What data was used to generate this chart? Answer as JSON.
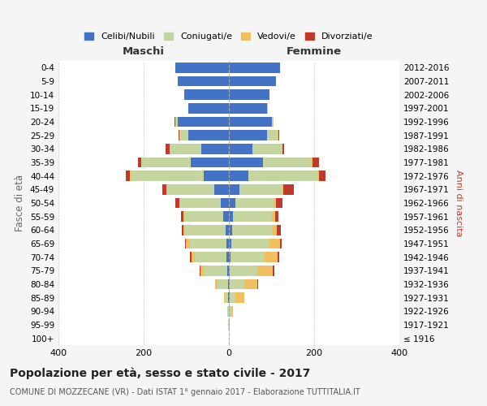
{
  "age_groups": [
    "100+",
    "95-99",
    "90-94",
    "85-89",
    "80-84",
    "75-79",
    "70-74",
    "65-69",
    "60-64",
    "55-59",
    "50-54",
    "45-49",
    "40-44",
    "35-39",
    "30-34",
    "25-29",
    "20-24",
    "15-19",
    "10-14",
    "5-9",
    "0-4"
  ],
  "birth_years": [
    "≤ 1916",
    "1917-1921",
    "1922-1926",
    "1927-1931",
    "1932-1936",
    "1937-1941",
    "1942-1946",
    "1947-1951",
    "1952-1956",
    "1957-1961",
    "1962-1966",
    "1967-1971",
    "1972-1976",
    "1977-1981",
    "1982-1986",
    "1987-1991",
    "1992-1996",
    "1997-2001",
    "2002-2006",
    "2007-2011",
    "2012-2016"
  ],
  "maschi": {
    "celibi": [
      0,
      0,
      0,
      1,
      2,
      4,
      5,
      6,
      8,
      14,
      20,
      35,
      60,
      90,
      65,
      95,
      120,
      95,
      105,
      120,
      125
    ],
    "coniugati": [
      0,
      1,
      3,
      8,
      25,
      55,
      75,
      85,
      95,
      90,
      95,
      110,
      170,
      115,
      75,
      20,
      5,
      1,
      0,
      0,
      0
    ],
    "vedovi": [
      0,
      0,
      1,
      2,
      5,
      8,
      8,
      10,
      3,
      2,
      2,
      1,
      2,
      1,
      0,
      1,
      1,
      0,
      0,
      0,
      0
    ],
    "divorziati": [
      0,
      0,
      0,
      0,
      0,
      2,
      3,
      2,
      5,
      6,
      8,
      10,
      10,
      8,
      8,
      2,
      1,
      0,
      0,
      0,
      0
    ]
  },
  "femmine": {
    "nubili": [
      0,
      0,
      0,
      1,
      2,
      2,
      4,
      5,
      8,
      10,
      15,
      25,
      45,
      80,
      55,
      90,
      100,
      90,
      95,
      110,
      120
    ],
    "coniugate": [
      0,
      1,
      5,
      15,
      35,
      65,
      80,
      90,
      95,
      90,
      90,
      100,
      165,
      115,
      70,
      25,
      5,
      2,
      0,
      0,
      0
    ],
    "vedove": [
      0,
      1,
      5,
      20,
      30,
      35,
      30,
      25,
      10,
      8,
      5,
      2,
      2,
      2,
      0,
      1,
      0,
      0,
      0,
      0,
      0
    ],
    "divorziate": [
      0,
      0,
      0,
      1,
      2,
      4,
      5,
      3,
      8,
      8,
      15,
      25,
      15,
      15,
      5,
      2,
      0,
      0,
      0,
      0,
      0
    ]
  },
  "colors": {
    "celibi": "#4472c4",
    "coniugati": "#c5d5a0",
    "vedovi": "#f0c060",
    "divorziati": "#c0392b"
  },
  "title": "Popolazione per età, sesso e stato civile - 2017",
  "subtitle": "COMUNE DI MOZZECANE (VR) - Dati ISTAT 1° gennaio 2017 - Elaborazione TUTTITALIA.IT",
  "xlabel_left": "Maschi",
  "xlabel_right": "Femmine",
  "ylabel_left": "Fasce di età",
  "ylabel_right": "Anni di nascita",
  "xlim": 400,
  "bg_color": "#f5f5f5",
  "plot_bg_color": "#ffffff",
  "legend_labels": [
    "Celibi/Nubili",
    "Coniugati/e",
    "Vedovi/e",
    "Divorziati/e"
  ]
}
